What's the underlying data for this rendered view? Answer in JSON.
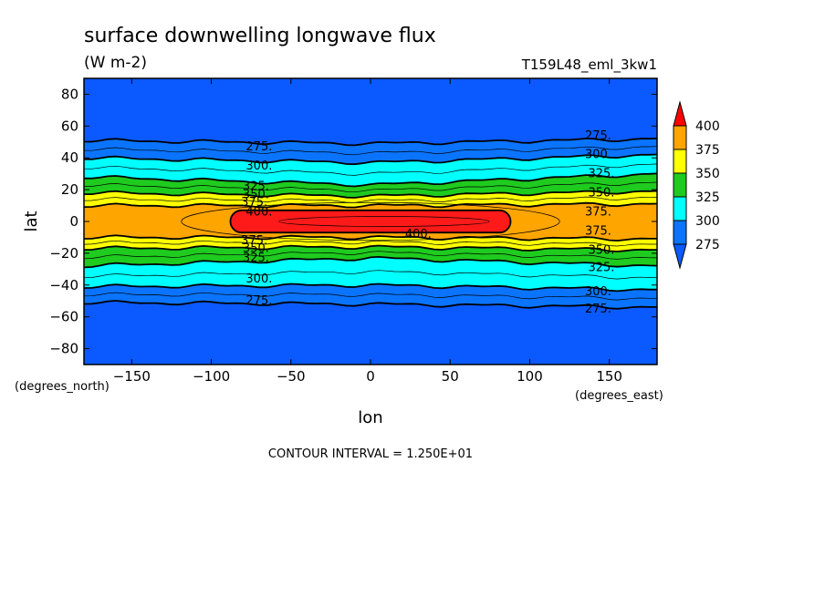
{
  "chart_data": {
    "type": "heatmap",
    "title": "surface downwelling longwave flux",
    "units": "(W m-2)",
    "dataset": "T159L48_eml_3kw1",
    "xlabel": "lon",
    "ylabel": "lat",
    "x_units": "(degrees_east)",
    "y_units": "(degrees_north)",
    "xlim": [
      -180,
      180
    ],
    "ylim": [
      -90,
      90
    ],
    "x_ticks": [
      -150,
      -100,
      -50,
      0,
      50,
      100,
      150
    ],
    "y_ticks": [
      -80,
      -60,
      -40,
      -20,
      0,
      20,
      40,
      60,
      80
    ],
    "contour_interval_label": "CONTOUR INTERVAL = 1.250E+01",
    "colorbar": {
      "levels": [
        275,
        300,
        325,
        350,
        375,
        400
      ],
      "colors": [
        "#0a74ff",
        "#00ffff",
        "#1ecb1e",
        "#ffff00",
        "#ffa500",
        "#ff1a1a"
      ],
      "below_color": "#0a5aff",
      "above_color": "#ff0000",
      "labels": [
        "275",
        "300",
        "325",
        "350",
        "375",
        "400"
      ]
    },
    "field": {
      "description_of_shape": "zonally-banded, symmetric about equator, peak over 0-30E",
      "bands": [
        {
          "level": 275,
          "north_lat_west": 51,
          "north_lat_mid": 49,
          "north_lat_east": 52,
          "south_lat_west": -51,
          "south_lat_mid": -52,
          "south_lat_east": -54
        },
        {
          "level": 300,
          "north_lat_west": 40,
          "north_lat_mid": 37,
          "north_lat_east": 42,
          "south_lat_west": -41,
          "south_lat_mid": -40,
          "south_lat_east": -43
        },
        {
          "level": 325,
          "north_lat_west": 28,
          "north_lat_mid": 23,
          "north_lat_east": 30,
          "south_lat_west": -28,
          "south_lat_mid": -23,
          "south_lat_east": -28
        },
        {
          "level": 350,
          "north_lat_west": 18,
          "north_lat_mid": 16,
          "north_lat_east": 19,
          "south_lat_west": -17,
          "south_lat_mid": -16,
          "south_lat_east": -18
        },
        {
          "level": 375,
          "north_lat_west": 10,
          "north_lat_mid": 10,
          "north_lat_east": 11,
          "south_lat_west": -10,
          "south_lat_mid": -10,
          "south_lat_east": -11
        }
      ],
      "core_400": {
        "lon_min": -88,
        "lon_max": 88,
        "lat_min": -7,
        "lat_max": 7
      }
    },
    "contour_labels": [
      {
        "text": "275.",
        "lon": -70,
        "lat": 47
      },
      {
        "text": "300.",
        "lon": -70,
        "lat": 35
      },
      {
        "text": "325.",
        "lon": -72,
        "lat": 22
      },
      {
        "text": "350.",
        "lon": -72,
        "lat": 17
      },
      {
        "text": "375.",
        "lon": -73,
        "lat": 12
      },
      {
        "text": "400.",
        "lon": -70,
        "lat": 6
      },
      {
        "text": "375.",
        "lon": -73,
        "lat": -12
      },
      {
        "text": "350.",
        "lon": -72,
        "lat": -17
      },
      {
        "text": "325.",
        "lon": -72,
        "lat": -23
      },
      {
        "text": "300.",
        "lon": -70,
        "lat": -36
      },
      {
        "text": "275.",
        "lon": -70,
        "lat": -50
      },
      {
        "text": "400.",
        "lon": 30,
        "lat": -8
      },
      {
        "text": "275.",
        "lon": 143,
        "lat": 54
      },
      {
        "text": "300.",
        "lon": 143,
        "lat": 42
      },
      {
        "text": "325.",
        "lon": 145,
        "lat": 30
      },
      {
        "text": "350.",
        "lon": 145,
        "lat": 18
      },
      {
        "text": "375.",
        "lon": 143,
        "lat": 6
      },
      {
        "text": "375.",
        "lon": 143,
        "lat": -6
      },
      {
        "text": "350.",
        "lon": 145,
        "lat": -18
      },
      {
        "text": "325.",
        "lon": 145,
        "lat": -29
      },
      {
        "text": "300.",
        "lon": 143,
        "lat": -44
      },
      {
        "text": "275.",
        "lon": 143,
        "lat": -55
      }
    ]
  }
}
